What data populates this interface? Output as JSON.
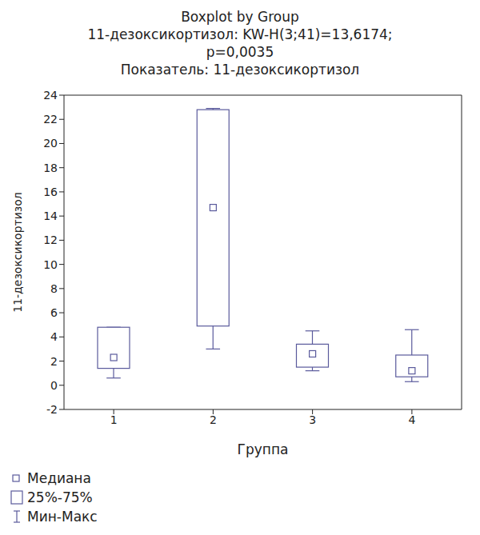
{
  "chart_data": {
    "type": "box",
    "title": "Boxplot by Group",
    "subtitle": [
      "11-дезоксикортизол: KW-H(3;41)=13,6174;",
      "p=0,0035",
      "Показатель: 11-дезоксикортизол"
    ],
    "x_label": "Группа",
    "y_label": "11-дезоксикортизол",
    "categories": [
      "1",
      "2",
      "3",
      "4"
    ],
    "min": [
      0.6,
      3.0,
      1.2,
      0.3
    ],
    "q1": [
      1.4,
      4.9,
      1.5,
      0.7
    ],
    "median": [
      2.3,
      14.7,
      2.6,
      1.2
    ],
    "q3": [
      4.8,
      22.8,
      3.4,
      2.5
    ],
    "max": [
      4.8,
      22.9,
      4.5,
      4.6
    ],
    "legend_entries": {
      "median": "Медиана",
      "box": "25%-75%",
      "whisker": "Мин-Макс"
    },
    "color": "#5a5a9c",
    "ylim": [
      -2,
      24
    ],
    "yticks": [
      -2,
      0,
      2,
      4,
      6,
      8,
      10,
      12,
      14,
      16,
      18,
      20,
      22,
      24
    ],
    "grid": false,
    "legend": "bottom-left"
  }
}
